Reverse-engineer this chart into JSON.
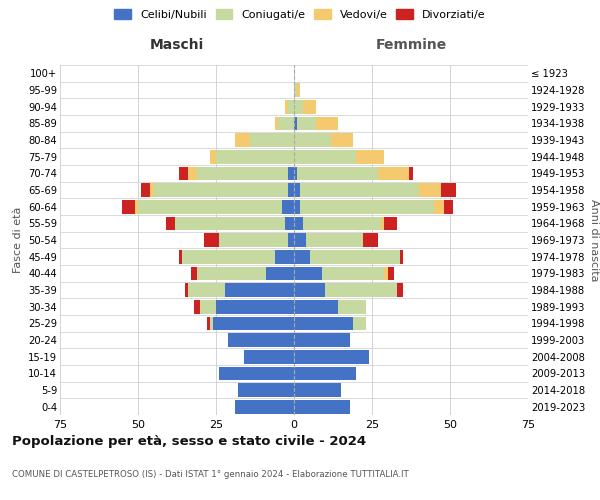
{
  "age_groups": [
    "0-4",
    "5-9",
    "10-14",
    "15-19",
    "20-24",
    "25-29",
    "30-34",
    "35-39",
    "40-44",
    "45-49",
    "50-54",
    "55-59",
    "60-64",
    "65-69",
    "70-74",
    "75-79",
    "80-84",
    "85-89",
    "90-94",
    "95-99",
    "100+"
  ],
  "birth_years": [
    "2019-2023",
    "2014-2018",
    "2009-2013",
    "2004-2008",
    "1999-2003",
    "1994-1998",
    "1989-1993",
    "1984-1988",
    "1979-1983",
    "1974-1978",
    "1969-1973",
    "1964-1968",
    "1959-1963",
    "1954-1958",
    "1949-1953",
    "1944-1948",
    "1939-1943",
    "1934-1938",
    "1929-1933",
    "1924-1928",
    "≤ 1923"
  ],
  "male": {
    "celibi": [
      19,
      18,
      24,
      16,
      21,
      26,
      25,
      22,
      9,
      6,
      2,
      3,
      4,
      2,
      2,
      0,
      0,
      0,
      0,
      0,
      0
    ],
    "coniugati": [
      0,
      0,
      0,
      0,
      0,
      1,
      5,
      12,
      22,
      30,
      22,
      35,
      46,
      43,
      29,
      25,
      14,
      5,
      2,
      0,
      0
    ],
    "vedovi": [
      0,
      0,
      0,
      0,
      0,
      0,
      0,
      0,
      0,
      0,
      0,
      0,
      1,
      1,
      3,
      2,
      5,
      1,
      1,
      0,
      0
    ],
    "divorziati": [
      0,
      0,
      0,
      0,
      0,
      1,
      2,
      1,
      2,
      1,
      5,
      3,
      4,
      3,
      3,
      0,
      0,
      0,
      0,
      0,
      0
    ]
  },
  "female": {
    "nubili": [
      18,
      15,
      20,
      24,
      18,
      19,
      14,
      10,
      9,
      5,
      4,
      3,
      2,
      2,
      1,
      0,
      0,
      1,
      0,
      0,
      0
    ],
    "coniugate": [
      0,
      0,
      0,
      0,
      0,
      4,
      9,
      23,
      20,
      29,
      18,
      25,
      43,
      38,
      26,
      20,
      12,
      6,
      3,
      1,
      0
    ],
    "vedove": [
      0,
      0,
      0,
      0,
      0,
      0,
      0,
      0,
      1,
      0,
      0,
      1,
      3,
      7,
      10,
      9,
      7,
      7,
      4,
      1,
      0
    ],
    "divorziate": [
      0,
      0,
      0,
      0,
      0,
      0,
      0,
      2,
      2,
      1,
      5,
      4,
      3,
      5,
      1,
      0,
      0,
      0,
      0,
      0,
      0
    ]
  },
  "colors": {
    "celibi": "#4472C4",
    "coniugati": "#c5d9a0",
    "vedovi": "#f5c96e",
    "divorziati": "#cc2222"
  },
  "xlim": 75,
  "title": "Popolazione per età, sesso e stato civile - 2024",
  "subtitle": "COMUNE DI CASTELPETROSO (IS) - Dati ISTAT 1° gennaio 2024 - Elaborazione TUTTITALIA.IT",
  "ylabel_left": "Fasce di età",
  "ylabel_right": "Anni di nascita",
  "xlabel_left": "Maschi",
  "xlabel_right": "Femmine",
  "background_color": "#ffffff",
  "grid_color": "#cccccc"
}
